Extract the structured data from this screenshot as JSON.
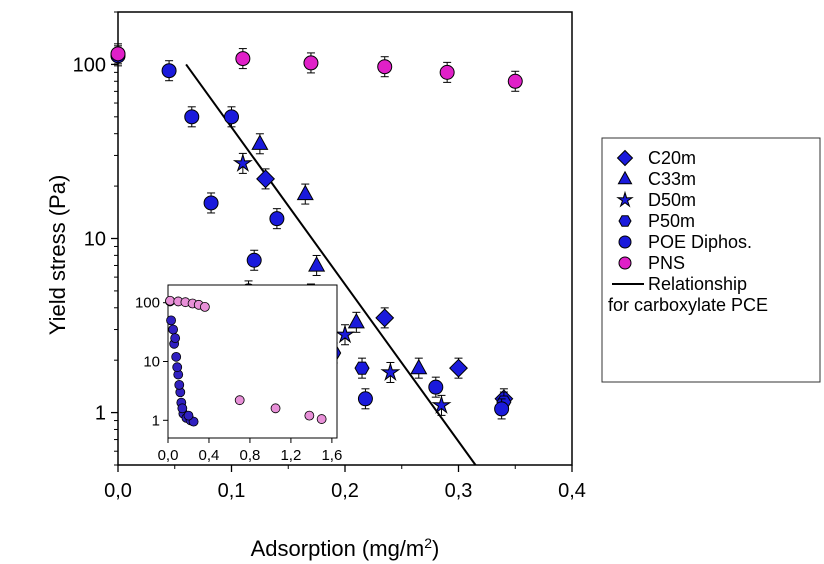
{
  "chart_data": [
    {
      "type": "scatter",
      "title": "",
      "xlabel": "Adsorption (mg/m",
      "xlabel_sup": "2",
      "xlabel_end": ")",
      "ylabel": "Yield stress (Pa)",
      "xlim": [
        0,
        0.4
      ],
      "ylim": [
        0.5,
        200
      ],
      "y_scale": "log",
      "x_ticks": [
        "0,0",
        "0,1",
        "0,2",
        "0,3",
        "0,4"
      ],
      "y_ticks": [
        "1",
        "10",
        "100"
      ],
      "legend_position": "right",
      "series": [
        {
          "name": "C20m",
          "marker": "diamond",
          "color": "#1a1adc",
          "points": [
            [
              0.13,
              22
            ],
            [
              0.235,
              3.5
            ],
            [
              0.3,
              1.8
            ],
            [
              0.34,
              1.2
            ]
          ]
        },
        {
          "name": "C33m",
          "marker": "triangle",
          "color": "#1a1adc",
          "points": [
            [
              0.125,
              35
            ],
            [
              0.165,
              18
            ],
            [
              0.175,
              7
            ],
            [
              0.21,
              3.3
            ],
            [
              0.265,
              1.8
            ]
          ]
        },
        {
          "name": "D50m",
          "marker": "star",
          "color": "#1a1adc",
          "points": [
            [
              0.11,
              27
            ],
            [
              0.17,
              4.8
            ],
            [
              0.2,
              2.8
            ],
            [
              0.24,
              1.7
            ],
            [
              0.285,
              1.1
            ]
          ]
        },
        {
          "name": "P50m",
          "marker": "hexagon",
          "color": "#1a1adc",
          "points": [
            [
              0.13,
              4.2
            ],
            [
              0.19,
              2.2
            ],
            [
              0.215,
              1.8
            ],
            [
              0.34,
              1.15
            ]
          ]
        },
        {
          "name": "POE Diphos.",
          "marker": "circle",
          "color": "#1a1adc",
          "points": [
            [
              0.0,
              112
            ],
            [
              0.045,
              92
            ],
            [
              0.065,
              50
            ],
            [
              0.082,
              16
            ],
            [
              0.1,
              50
            ],
            [
              0.115,
              5
            ],
            [
              0.12,
              7.5
            ],
            [
              0.14,
              13
            ],
            [
              0.218,
              1.2
            ],
            [
              0.28,
              1.4
            ],
            [
              0.338,
              1.05
            ]
          ]
        },
        {
          "name": "PNS",
          "marker": "circle",
          "color": "#e020c8",
          "points": [
            [
              0.0,
              115
            ],
            [
              0.11,
              108
            ],
            [
              0.17,
              102
            ],
            [
              0.235,
              97
            ],
            [
              0.29,
              90
            ],
            [
              0.35,
              80
            ]
          ]
        }
      ],
      "line": {
        "name": "Relationship",
        "name_line2": "for carboxylate PCE",
        "points": [
          [
            0.06,
            100
          ],
          [
            0.315,
            0.5
          ]
        ]
      }
    },
    {
      "type": "scatter",
      "title": "",
      "xlim": [
        0,
        1.65
      ],
      "ylim": [
        0.5,
        200
      ],
      "y_scale": "log",
      "x_ticks": [
        "0,0",
        "0,4",
        "0,8",
        "1,2",
        "1,6"
      ],
      "y_ticks": [
        "1",
        "10",
        "100"
      ],
      "series": [
        {
          "name": "carboxylate",
          "color": "#3020c0",
          "points": [
            [
              0.02,
              105
            ],
            [
              0.05,
              35
            ],
            [
              0.06,
              20
            ],
            [
              0.08,
              12
            ],
            [
              0.1,
              6
            ],
            [
              0.12,
              3
            ],
            [
              0.13,
              2
            ],
            [
              0.15,
              1.3
            ],
            [
              0.18,
              1.1
            ],
            [
              0.22,
              1.0
            ],
            [
              0.25,
              0.95
            ],
            [
              0.03,
              50
            ],
            [
              0.07,
              25
            ],
            [
              0.09,
              8
            ],
            [
              0.11,
              4
            ],
            [
              0.14,
              1.6
            ],
            [
              0.2,
              1.2
            ]
          ]
        },
        {
          "name": "PNS",
          "color": "#e890d8",
          "points": [
            [
              0.02,
              108
            ],
            [
              0.1,
              105
            ],
            [
              0.17,
              102
            ],
            [
              0.24,
              97
            ],
            [
              0.3,
              92
            ],
            [
              0.36,
              85
            ],
            [
              0.7,
              2.2
            ],
            [
              1.05,
              1.6
            ],
            [
              1.38,
              1.2
            ],
            [
              1.5,
              1.05
            ]
          ]
        }
      ]
    }
  ]
}
